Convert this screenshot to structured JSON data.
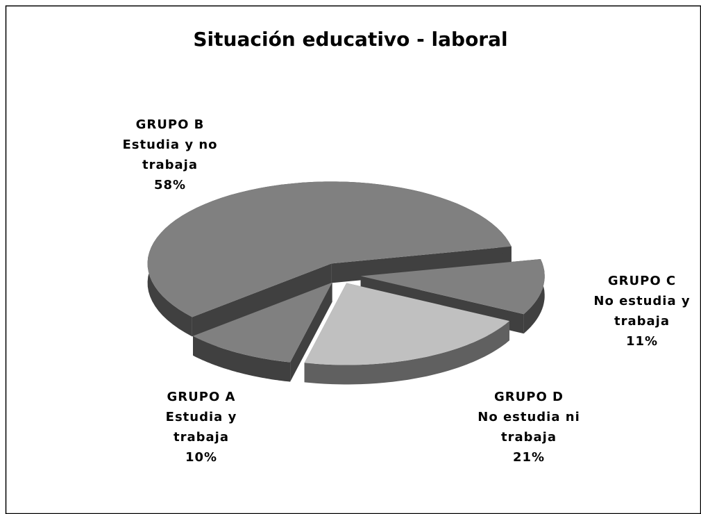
{
  "chart_data": {
    "type": "pie3d",
    "title": "Situación educativo - laboral",
    "categories": [
      [
        "GRUPO  A",
        "Estudia y",
        "trabaja"
      ],
      [
        "GRUPO  B",
        "Estudia y no",
        "trabaja"
      ],
      [
        "GRUPO  C",
        "No estudia y",
        "trabaja"
      ],
      [
        "GRUPO  D",
        "No estudia ni",
        "trabaja"
      ]
    ],
    "values": [
      10,
      58,
      11,
      21
    ],
    "value_labels": [
      "10%",
      "58%",
      "11%",
      "21%"
    ],
    "colors": [
      "#808080",
      "#808080",
      "#808080",
      "#c0c0c0"
    ]
  }
}
